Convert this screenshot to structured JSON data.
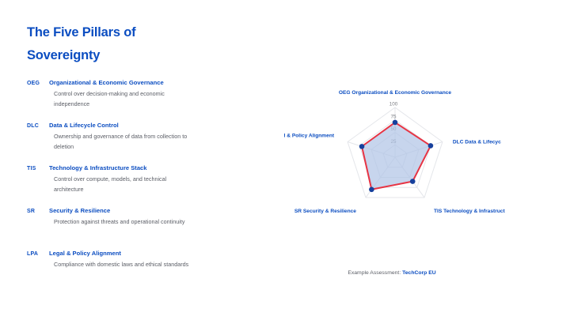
{
  "title": {
    "line1": "The Five Pillars of",
    "line2": "Sovereignty"
  },
  "pillars": [
    {
      "abbr": "OEG",
      "name": "Organizational & Economic Governance",
      "description": "Control over decision-making and economic independence"
    },
    {
      "abbr": "DLC",
      "name": "Data & Lifecycle Control",
      "description": "Ownership and governance of data from collection to deletion"
    },
    {
      "abbr": "TIS",
      "name": "Technology & Infrastructure Stack",
      "description": "Control over compute, models, and technical architecture"
    },
    {
      "abbr": "SR",
      "name": "Security & Resilience",
      "description": "Protection against threats and operational continuity"
    },
    {
      "abbr": "LPA",
      "name": "Legal & Policy Alignment",
      "description": "Compliance with domestic laws and ethical standards"
    }
  ],
  "chart_data": {
    "type": "radar",
    "categories": [
      "OEG Organizational & Economic Governance",
      "DLC Data & Lifecycle Control",
      "TIS Technology & Infrastructure Stack",
      "SR Security & Resilience",
      "LPA Legal & Policy Alignment"
    ],
    "axis_labels_visible": [
      "OEG Organizational & Economic Governance",
      "DLC Data & Lifecyc",
      "TIS Technology & Infrastruct",
      "SR Security & Resilience",
      "l & Policy Alignment"
    ],
    "series": [
      {
        "name": "TechCorp EU",
        "values": [
          70,
          75,
          60,
          80,
          70
        ]
      }
    ],
    "ticks": [
      25,
      50,
      75,
      100
    ],
    "range": [
      0,
      100
    ],
    "grid": true,
    "legend_position": "none"
  },
  "caption": {
    "prefix": "Example Assessment: ",
    "value": "TechCorp EU"
  },
  "colors": {
    "accent": "#0B4DC1",
    "text_gray": "#5B5E66",
    "tick_gray": "#7A7D82",
    "grid": "#E4E6EA",
    "radar_fill": "#AFC3E6",
    "radar_stroke": "#E73444",
    "radar_point": "#16409C",
    "background": "#FFFFFF"
  }
}
